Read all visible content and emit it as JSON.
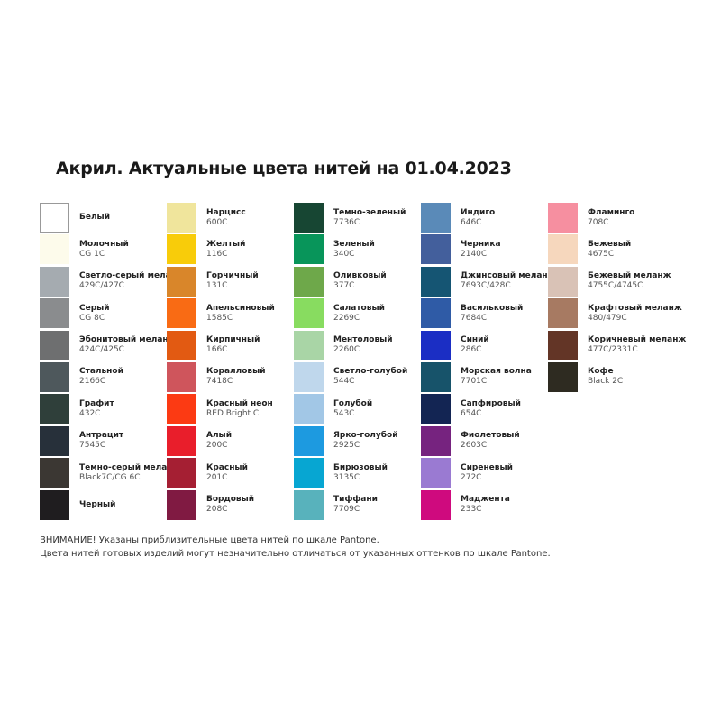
{
  "title": "Акрил. Актуальные цвета нитей на 01.04.2023",
  "columns": [
    [
      {
        "name": "Белый",
        "code": "",
        "color": "#ffffff"
      },
      {
        "name": "Молочный",
        "code": "CG 1C",
        "color": "#fdfbeb"
      },
      {
        "name": "Светло-серый меланж",
        "code": "429C/427C",
        "color": "#a5abb0"
      },
      {
        "name": "Серый",
        "code": "CG 8C",
        "color": "#8a8c8e"
      },
      {
        "name": "Эбонитовый меланж",
        "code": "424C/425C",
        "color": "#6e6f70"
      },
      {
        "name": "Стальной",
        "code": "2166C",
        "color": "#4e585c"
      },
      {
        "name": "Графит",
        "code": "432C",
        "color": "#2f3f3a"
      },
      {
        "name": "Антрацит",
        "code": "7545C",
        "color": "#27303a"
      },
      {
        "name": "Темно-серый меланж",
        "code": "Black7C/CG 6C",
        "color": "#3b3733"
      },
      {
        "name": "Черный",
        "code": "",
        "color": "#1f1d1f"
      }
    ],
    [
      {
        "name": "Нарцисс",
        "code": "600C",
        "color": "#f0e59c"
      },
      {
        "name": "Желтый",
        "code": "116C",
        "color": "#f8cc0a"
      },
      {
        "name": "Горчичный",
        "code": "131C",
        "color": "#d9862a"
      },
      {
        "name": "Апельсиновый",
        "code": "1585C",
        "color": "#f96b14"
      },
      {
        "name": "Кирпичный",
        "code": "166C",
        "color": "#e25a12"
      },
      {
        "name": "Коралловый",
        "code": "7418C",
        "color": "#cf555c"
      },
      {
        "name": "Красный неон",
        "code": "RED Bright C",
        "color": "#fc3a13"
      },
      {
        "name": "Алый",
        "code": "200C",
        "color": "#e91e2b"
      },
      {
        "name": "Красный",
        "code": "201C",
        "color": "#a51f33"
      },
      {
        "name": "Бордовый",
        "code": "208C",
        "color": "#801a42"
      }
    ],
    [
      {
        "name": "Темно-зеленый",
        "code": "7736C",
        "color": "#174633"
      },
      {
        "name": "Зеленый",
        "code": "340C",
        "color": "#08955a"
      },
      {
        "name": "Оливковый",
        "code": "377C",
        "color": "#6ea84a"
      },
      {
        "name": "Салатовый",
        "code": "2269C",
        "color": "#88dc60"
      },
      {
        "name": "Ментоловый",
        "code": "2260C",
        "color": "#a9d5a6"
      },
      {
        "name": "Светло-голубой",
        "code": "544C",
        "color": "#bfd7ec"
      },
      {
        "name": "Голубой",
        "code": "543C",
        "color": "#a2c7e6"
      },
      {
        "name": "Ярко-голубой",
        "code": "2925C",
        "color": "#1d9ae0"
      },
      {
        "name": "Бирюзовый",
        "code": "3135C",
        "color": "#07a6d2"
      },
      {
        "name": "Тиффани",
        "code": "7709C",
        "color": "#58b2bc"
      }
    ],
    [
      {
        "name": "Индиго",
        "code": "646C",
        "color": "#5a8ab8"
      },
      {
        "name": "Черника",
        "code": "2140C",
        "color": "#435f9c"
      },
      {
        "name": "Джинсовый меланж",
        "code": "7693C/428C",
        "color": "#155573"
      },
      {
        "name": "Васильковый",
        "code": "7684C",
        "color": "#2f5ba6"
      },
      {
        "name": "Синий",
        "code": "286C",
        "color": "#1b2ec4"
      },
      {
        "name": "Морская волна",
        "code": "7701C",
        "color": "#17536a"
      },
      {
        "name": "Сапфировый",
        "code": "654C",
        "color": "#132553"
      },
      {
        "name": "Фиолетовый",
        "code": "2603C",
        "color": "#76237f"
      },
      {
        "name": "Сиреневый",
        "code": "272C",
        "color": "#9a7ad2"
      },
      {
        "name": "Маджента",
        "code": "233C",
        "color": "#cf0a7e"
      }
    ],
    [
      {
        "name": "Фламинго",
        "code": "708C",
        "color": "#f68fa0"
      },
      {
        "name": "Бежевый",
        "code": "4675C",
        "color": "#f6d7bd"
      },
      {
        "name": "Бежевый меланж",
        "code": "4755C/4745C",
        "color": "#d9c2b6"
      },
      {
        "name": "Крафтовый меланж",
        "code": "480/479C",
        "color": "#a77a62"
      },
      {
        "name": "Коричневый меланж",
        "code": "477C/2331C",
        "color": "#633526"
      },
      {
        "name": "Кофе",
        "code": "Black 2C",
        "color": "#2e2b21"
      }
    ]
  ],
  "notes": [
    "ВНИМАНИЕ! Указаны приблизительные цвета нитей по шкале Pantone.",
    "Цвета нитей готовых изделий могут незначительно отличаться от указанных оттенков по шкале Pantone."
  ]
}
